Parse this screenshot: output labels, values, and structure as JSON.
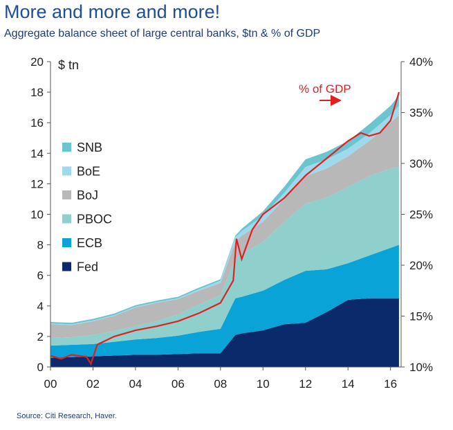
{
  "title": "More and more and more!",
  "subtitle": "Aggregate balance sheet of large central banks, $tn & % of GDP",
  "source": "Source: Citi Research, Haver.",
  "chart_data": {
    "type": "area",
    "left_axis_label": "$ tn",
    "annotation": "% of GDP",
    "x_tick_labels": [
      "00",
      "02",
      "04",
      "06",
      "08",
      "10",
      "12",
      "14",
      "16"
    ],
    "x_ticks": [
      2000,
      2002,
      2004,
      2006,
      2008,
      2010,
      2012,
      2014,
      2016
    ],
    "xlim": [
      2000,
      2016.5
    ],
    "ylim_left": [
      0,
      20
    ],
    "y_left_ticks": [
      0,
      2,
      4,
      6,
      8,
      10,
      12,
      14,
      16,
      18,
      20
    ],
    "ylim_right": [
      10,
      40
    ],
    "y_right_ticks": [
      "10%",
      "15%",
      "20%",
      "25%",
      "30%",
      "35%",
      "40%"
    ],
    "y_right_values": [
      10,
      15,
      20,
      25,
      30,
      35,
      40
    ],
    "legend_order": [
      "SNB",
      "BoE",
      "BoJ",
      "PBOC",
      "ECB",
      "Fed"
    ],
    "x": [
      2000,
      2001,
      2002,
      2003,
      2004,
      2005,
      2006,
      2007,
      2008,
      2008.7,
      2009,
      2010,
      2011,
      2012,
      2013,
      2014,
      2015,
      2016,
      2016.4
    ],
    "series": [
      {
        "name": "Fed",
        "color": "#0b2a6b",
        "values": [
          0.6,
          0.65,
          0.7,
          0.75,
          0.8,
          0.8,
          0.85,
          0.9,
          0.9,
          2.1,
          2.2,
          2.4,
          2.8,
          2.9,
          3.6,
          4.4,
          4.5,
          4.5,
          4.5
        ]
      },
      {
        "name": "ECB",
        "color": "#0aa3d8",
        "values": [
          0.8,
          0.8,
          0.8,
          0.9,
          1.0,
          1.1,
          1.2,
          1.4,
          1.6,
          2.4,
          2.4,
          2.6,
          2.9,
          3.4,
          2.8,
          2.4,
          2.8,
          3.3,
          3.5
        ]
      },
      {
        "name": "PBOC",
        "color": "#8fcfcc",
        "values": [
          0.5,
          0.5,
          0.6,
          0.7,
          0.9,
          1.1,
          1.4,
          1.8,
          2.2,
          2.6,
          2.8,
          3.2,
          3.8,
          4.4,
          4.7,
          5.0,
          5.2,
          5.2,
          5.1
        ]
      },
      {
        "name": "BoJ",
        "color": "#b8b8b8",
        "values": [
          0.9,
          0.8,
          0.9,
          1.0,
          1.2,
          1.2,
          1.0,
          0.9,
          0.8,
          1.1,
          1.2,
          1.3,
          1.5,
          1.8,
          1.9,
          2.0,
          2.3,
          3.0,
          3.4
        ]
      },
      {
        "name": "BoE",
        "color": "#9fd9ec",
        "values": [
          0.05,
          0.05,
          0.05,
          0.05,
          0.05,
          0.05,
          0.05,
          0.1,
          0.15,
          0.3,
          0.3,
          0.4,
          0.4,
          0.6,
          0.6,
          0.5,
          0.5,
          0.5,
          0.6
        ]
      },
      {
        "name": "SNB",
        "color": "#6cc4cf",
        "values": [
          0.1,
          0.1,
          0.1,
          0.1,
          0.1,
          0.1,
          0.1,
          0.1,
          0.1,
          0.1,
          0.15,
          0.3,
          0.4,
          0.5,
          0.5,
          0.5,
          0.6,
          0.6,
          0.7
        ]
      }
    ],
    "pct_gdp": {
      "name": "% of GDP",
      "color": "#e02020",
      "x": [
        2000,
        2000.5,
        2001,
        2001.7,
        2001.9,
        2002.2,
        2003,
        2004,
        2005,
        2006,
        2007,
        2008,
        2008.6,
        2008.75,
        2009,
        2009.5,
        2010,
        2011,
        2012,
        2013,
        2014,
        2014.6,
        2015,
        2015.5,
        2016,
        2016.4
      ],
      "values": [
        11.1,
        10.8,
        11.2,
        11.0,
        10.3,
        12.2,
        13.0,
        13.6,
        14.0,
        14.5,
        15.3,
        16.3,
        18.5,
        22.6,
        20.6,
        23.5,
        25.0,
        26.6,
        28.8,
        30.5,
        32.2,
        33.0,
        32.7,
        33.0,
        34.2,
        37.0
      ]
    }
  }
}
